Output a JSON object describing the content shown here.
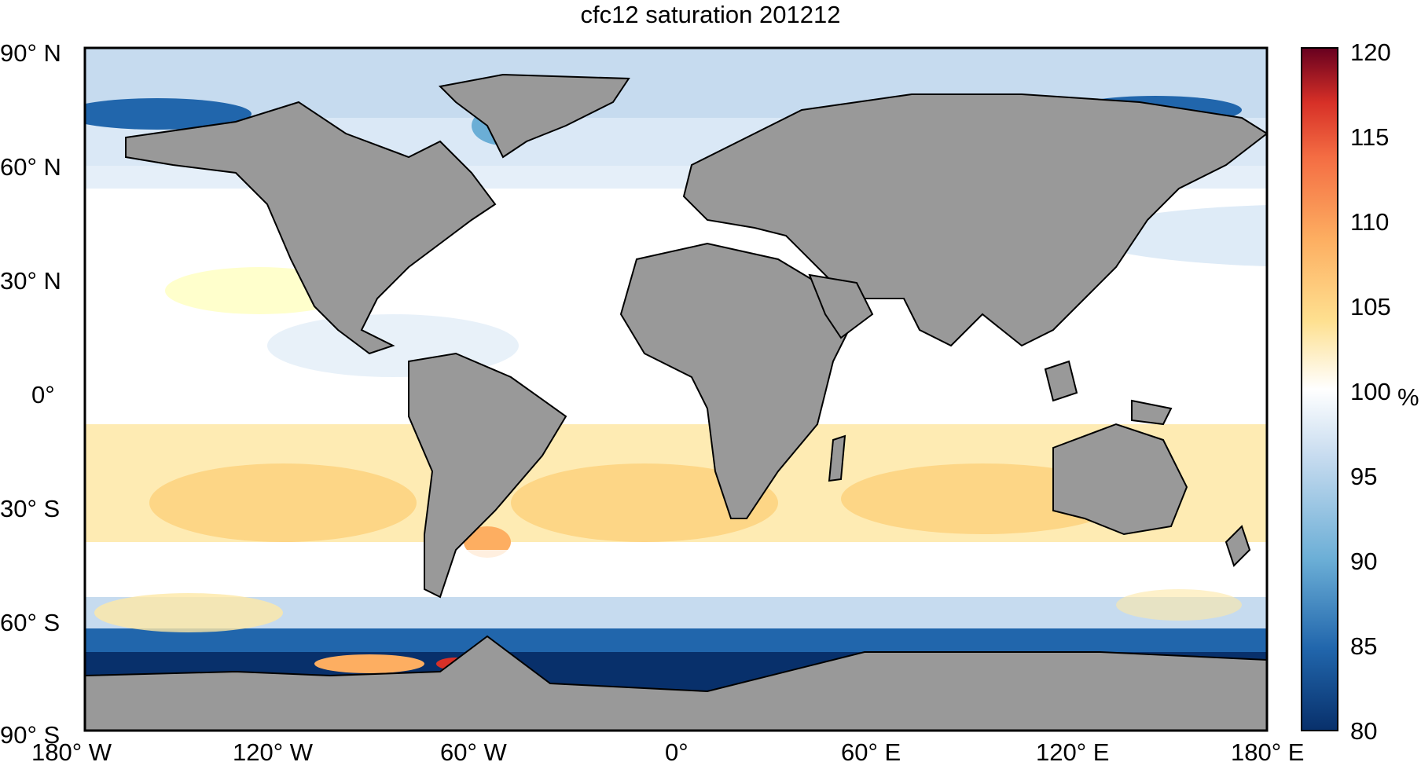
{
  "title": "cfc12 saturation 201212",
  "lat_labels": [
    "90° N",
    "60° N",
    "30° N",
    "0°",
    "30° S",
    "60° S",
    "90° S"
  ],
  "lon_labels": [
    "180° W",
    "120° W",
    "60° W",
    "0°",
    "60° E",
    "120° E",
    "180° E"
  ],
  "colorbar": {
    "ticks": [
      "120",
      "115",
      "110",
      "105",
      "100",
      "95",
      "90",
      "85",
      "80"
    ],
    "unit": "%",
    "range": [
      80,
      120
    ],
    "colors": [
      "#08306b",
      "#2166ac",
      "#4393c3",
      "#92c5de",
      "#d1e5f0",
      "#ffffff",
      "#fee090",
      "#fdae61",
      "#f46d43",
      "#d73027",
      "#a50026",
      "#67001f"
    ]
  },
  "map": {
    "projection": "equirectangular",
    "land_color": "#999999",
    "ocean_background": "#ffffff"
  }
}
